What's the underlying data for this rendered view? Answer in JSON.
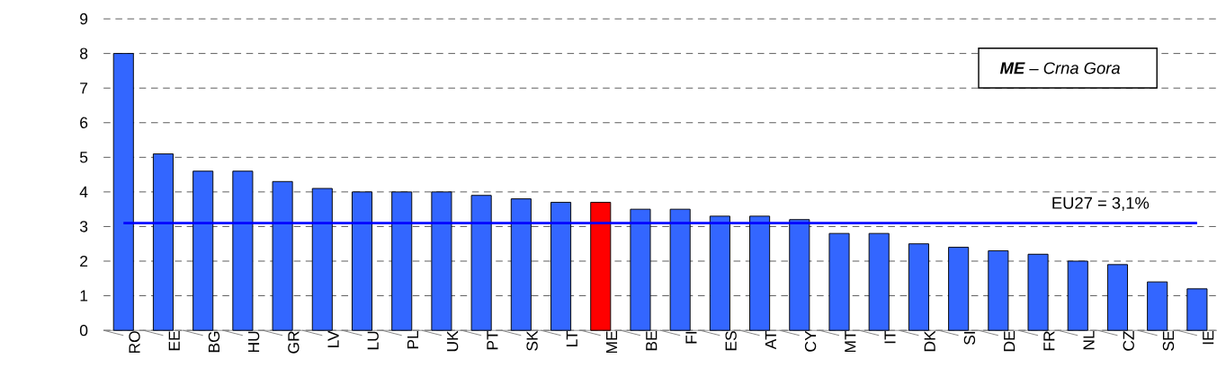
{
  "chart_data": {
    "type": "bar",
    "categories": [
      "RO",
      "EE",
      "BG",
      "HU",
      "GR",
      "LV",
      "LU",
      "PL",
      "UK",
      "PT",
      "SK",
      "LT",
      "ME",
      "BE",
      "FI",
      "ES",
      "AT",
      "CY",
      "MT",
      "IT",
      "DK",
      "SI",
      "DE",
      "FR",
      "NL",
      "CZ",
      "SE",
      "IE"
    ],
    "values": [
      8.0,
      5.1,
      4.6,
      4.6,
      4.3,
      4.1,
      4.0,
      4.0,
      4.0,
      3.9,
      3.8,
      3.7,
      3.7,
      3.5,
      3.5,
      3.3,
      3.3,
      3.2,
      2.8,
      2.8,
      2.5,
      2.4,
      2.3,
      2.2,
      2.0,
      1.9,
      1.4,
      1.2
    ],
    "colors": [
      "#3366ff",
      "#3366ff",
      "#3366ff",
      "#3366ff",
      "#3366ff",
      "#3366ff",
      "#3366ff",
      "#3366ff",
      "#3366ff",
      "#3366ff",
      "#3366ff",
      "#3366ff",
      "#ff0000",
      "#3366ff",
      "#3366ff",
      "#3366ff",
      "#3366ff",
      "#3366ff",
      "#3366ff",
      "#3366ff",
      "#3366ff",
      "#3366ff",
      "#3366ff",
      "#3366ff",
      "#3366ff",
      "#3366ff",
      "#3366ff",
      "#3366ff"
    ],
    "ylim": [
      0,
      9
    ],
    "yticks": [
      0,
      1,
      2,
      3,
      4,
      5,
      6,
      7,
      8,
      9
    ],
    "grid": "y",
    "ref_lines": [
      {
        "axis": "y",
        "value": 3.1,
        "label": "EU27 = 3,1%",
        "color": "#0000ff",
        "line_style": "solid"
      }
    ],
    "annotations": [
      "**ME** – Crna Gora"
    ]
  }
}
